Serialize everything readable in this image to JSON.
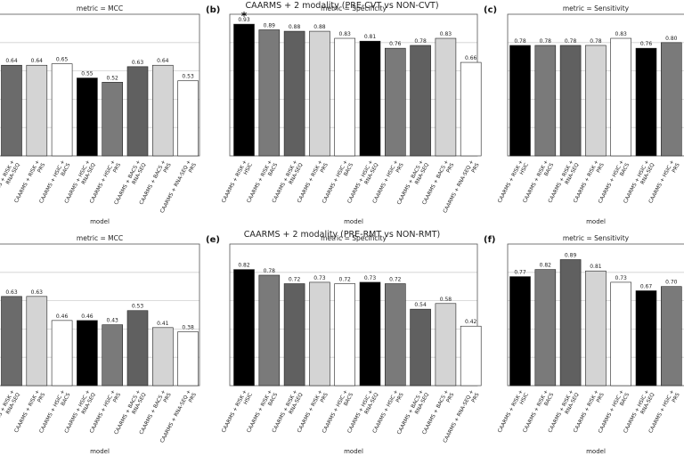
{
  "suptitles": [
    "CAARMS + 2 modality (PRE-CVT vs NON-CVT)",
    "CAARMS + 2 modality (PRE-RMT vs NON-RMT)"
  ],
  "chart_data": [
    {
      "type": "bar",
      "panel": "",
      "title": "metric = MCC",
      "xlabel": "model",
      "ylim": [
        0,
        1
      ],
      "categories": [
        "CAARMS + RISK +\nRNA-SEQ",
        "CAARMS + RISK +\nPRS",
        "CAARMS + HSIC +\nBACS",
        "CAARMS + HSIC +\nRNA-SEQ",
        "CAARMS + HSIC +\nPRS",
        "CAARMS + BACS +\nRNA-SEQ",
        "CAARMS + BACS +\nPRS",
        "CAARMS + RNA-SEQ +\nPRS"
      ],
      "values": [
        0.64,
        0.64,
        0.65,
        0.55,
        0.52,
        0.63,
        0.64,
        0.53
      ],
      "value_labels": [
        "0.64",
        "0.64",
        "0.65",
        "0.55",
        "0.52",
        "0.63",
        "0.64",
        "0.53"
      ],
      "colors": [
        "#6b6b6b",
        "#d4d4d4",
        "#ffffff",
        "#000000",
        "#7a7a7a",
        "#606060",
        "#d4d4d4",
        "#ffffff"
      ],
      "star": null
    },
    {
      "type": "bar",
      "panel": "(b)",
      "title": "metric = Specificity",
      "xlabel": "model",
      "ylim": [
        0,
        1
      ],
      "categories": [
        "CAARMS + RISK +\nHSIC",
        "CAARMS + RISK +\nBACS",
        "CAARMS + RISK +\nRNA-SEQ",
        "CAARMS + RISK +\nPRS",
        "CAARMS + HSIC +\nBACS",
        "CAARMS + HSIC +\nRNA-SEQ",
        "CAARMS + HSIC +\nPRS",
        "CAARMS + BACS +\nRNA-SEQ",
        "CAARMS + BACS +\nPRS",
        "CAARMS + RNA-SEQ +\nPRS"
      ],
      "values": [
        0.93,
        0.89,
        0.88,
        0.88,
        0.83,
        0.81,
        0.76,
        0.78,
        0.83,
        0.66
      ],
      "value_labels": [
        "0.93",
        "0.89",
        "0.88",
        "0.88",
        "0.83",
        "0.81",
        "0.76",
        "0.78",
        "0.83",
        "0.66"
      ],
      "colors": [
        "#000000",
        "#7a7a7a",
        "#606060",
        "#d4d4d4",
        "#ffffff",
        "#000000",
        "#7a7a7a",
        "#606060",
        "#d4d4d4",
        "#ffffff"
      ],
      "star": {
        "index": 0,
        "symbol": "*"
      }
    },
    {
      "type": "bar",
      "panel": "(c)",
      "title": "metric = Sensitivity",
      "xlabel": "model",
      "ylim": [
        0,
        1
      ],
      "categories": [
        "CAARMS + RISK +\nHSIC",
        "CAARMS + RISK +\nBACS",
        "CAARMS + RISK +\nRNA-SEQ",
        "CAARMS + RISK +\nPRS",
        "CAARMS + HSIC +\nBACS",
        "CAARMS + HSIC +\nRNA-SEQ",
        "CAARMS + HSIC +\nPRS"
      ],
      "values": [
        0.78,
        0.78,
        0.78,
        0.78,
        0.83,
        0.76,
        0.8
      ],
      "value_labels": [
        "0.78",
        "0.78",
        "0.78",
        "0.78",
        "0.83",
        "0.76",
        "0.80"
      ],
      "colors": [
        "#000000",
        "#7a7a7a",
        "#606060",
        "#d4d4d4",
        "#ffffff",
        "#000000",
        "#7a7a7a"
      ],
      "star": null
    },
    {
      "type": "bar",
      "panel": "",
      "title": "metric = MCC",
      "xlabel": "model",
      "ylim": [
        0,
        1
      ],
      "categories": [
        "CAARMS + RISK +\nRNA-SEQ",
        "CAARMS + RISK +\nPRS",
        "CAARMS + HSIC +\nBACS",
        "CAARMS + HSIC +\nRNA-SEQ",
        "CAARMS + HSIC +\nPRS",
        "CAARMS + BACS +\nRNA-SEQ",
        "CAARMS + BACS +\nPRS",
        "CAARMS + RNA-SEQ +\nPRS"
      ],
      "values": [
        0.63,
        0.63,
        0.46,
        0.46,
        0.43,
        0.53,
        0.41,
        0.38
      ],
      "value_labels": [
        "0.63",
        "0.63",
        "0.46",
        "0.46",
        "0.43",
        "0.53",
        "0.41",
        "0.38"
      ],
      "colors": [
        "#6b6b6b",
        "#d4d4d4",
        "#ffffff",
        "#000000",
        "#7a7a7a",
        "#606060",
        "#d4d4d4",
        "#ffffff"
      ],
      "star": null
    },
    {
      "type": "bar",
      "panel": "(e)",
      "title": "metric = Specificity",
      "xlabel": "model",
      "ylim": [
        0,
        1
      ],
      "categories": [
        "CAARMS + RISK +\nHSIC",
        "CAARMS + RISK +\nBACS",
        "CAARMS + RISK +\nRNA-SEQ",
        "CAARMS + RISK +\nPRS",
        "CAARMS + HSIC +\nBACS",
        "CAARMS + HSIC +\nRNA-SEQ",
        "CAARMS + HSIC +\nPRS",
        "CAARMS + BACS +\nRNA-SEQ",
        "CAARMS + BACS +\nPRS",
        "CAARMS + RNA-SEQ +\nPRS"
      ],
      "values": [
        0.82,
        0.78,
        0.72,
        0.73,
        0.72,
        0.73,
        0.72,
        0.54,
        0.58,
        0.42
      ],
      "value_labels": [
        "0.82",
        "0.78",
        "0.72",
        "0.73",
        "0.72",
        "0.73",
        "0.72",
        "0.54",
        "0.58",
        "0.42"
      ],
      "colors": [
        "#000000",
        "#7a7a7a",
        "#606060",
        "#d4d4d4",
        "#ffffff",
        "#000000",
        "#7a7a7a",
        "#606060",
        "#d4d4d4",
        "#ffffff"
      ],
      "star": null
    },
    {
      "type": "bar",
      "panel": "(f)",
      "title": "metric = Sensitivity",
      "xlabel": "model",
      "ylim": [
        0,
        1
      ],
      "categories": [
        "CAARMS + RISK +\nHSIC",
        "CAARMS + RISK +\nBACS",
        "CAARMS + RISK +\nRNA-SEQ",
        "CAARMS + RISK +\nPRS",
        "CAARMS + HSIC +\nBACS",
        "CAARMS + HSIC +\nRNA-SEQ",
        "CAARMS + HSIC +\nPRS"
      ],
      "values": [
        0.77,
        0.82,
        0.89,
        0.81,
        0.73,
        0.67,
        0.7
      ],
      "value_labels": [
        "0.77",
        "0.82",
        "0.89",
        "0.81",
        "0.73",
        "0.67",
        "0.70"
      ],
      "colors": [
        "#000000",
        "#7a7a7a",
        "#606060",
        "#d4d4d4",
        "#ffffff",
        "#000000",
        "#7a7a7a"
      ],
      "star": null
    }
  ]
}
